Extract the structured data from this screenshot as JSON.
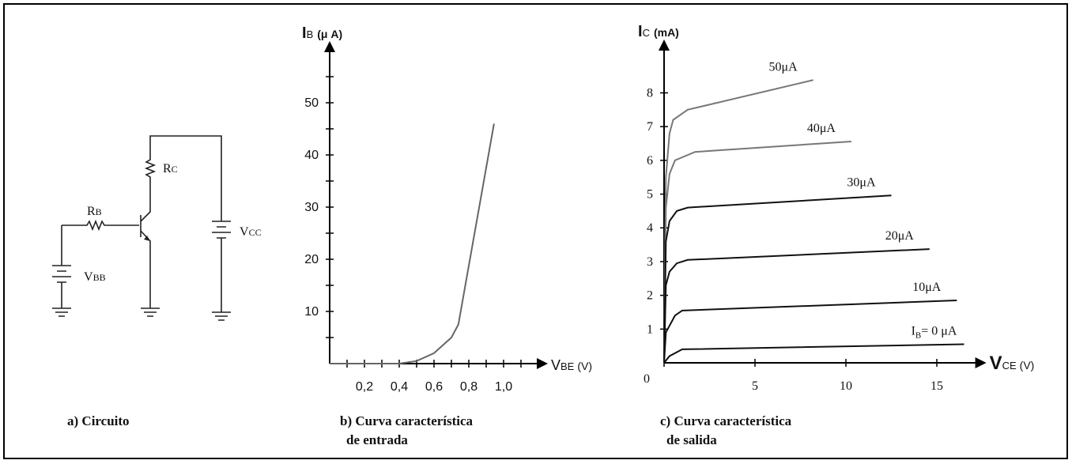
{
  "circuit": {
    "labels": [
      {
        "main": "R",
        "sub": "B"
      },
      {
        "main": "R",
        "sub": "C"
      },
      {
        "main": "V",
        "sub": "BB"
      },
      {
        "main": "V",
        "sub": "CC"
      }
    ],
    "caption": [
      "a) Circuito"
    ]
  },
  "chart_data": [
    {
      "type": "line",
      "caption": [
        "b) Curva característica",
        "de entrada"
      ],
      "y_label": {
        "main": "I",
        "sub": "B",
        "unit": "(μ A)"
      },
      "x_label": {
        "main": "V",
        "sub": "BE",
        "unit": "(V)"
      },
      "xlim": [
        0,
        1.2
      ],
      "ylim": [
        0,
        60
      ],
      "xticks": [
        {
          "value": 0.2,
          "label": "0,2"
        },
        {
          "value": 0.4,
          "label": "0,4"
        },
        {
          "value": 0.6,
          "label": "0,6"
        },
        {
          "value": 0.8,
          "label": "0,8"
        },
        {
          "value": 1.0,
          "label": "1,0"
        }
      ],
      "xminorticks": [
        0.1,
        0.3,
        0.5,
        0.7,
        0.9,
        1.1
      ],
      "yticks": [
        10,
        20,
        30,
        40,
        50
      ],
      "yminorticks": [
        5,
        15,
        25,
        35,
        45,
        55
      ],
      "series": [
        {
          "color": "#666666",
          "x": [
            0,
            0.4,
            0.5,
            0.6,
            0.7,
            0.74,
            0.945
          ],
          "values": [
            0,
            0,
            0.5,
            2,
            5,
            7.5,
            46
          ]
        }
      ]
    },
    {
      "type": "line",
      "caption": [
        "c) Curva característica",
        "de salida"
      ],
      "y_label": {
        "main": "I",
        "sub": "C",
        "unit": "(mA)"
      },
      "x_label": {
        "main": "V",
        "sub": "CE",
        "unit": "(V)"
      },
      "xlim": [
        0,
        17.2
      ],
      "ylim": [
        0,
        9.3
      ],
      "xticks": [
        0,
        5,
        10,
        15
      ],
      "yticks": [
        1,
        2,
        3,
        4,
        5,
        6,
        7,
        8
      ],
      "series": [
        {
          "name": "50μA",
          "color": "#777777",
          "x": [
            0,
            0.1,
            0.3,
            0.5,
            1.3,
            8.2
          ],
          "values": [
            0,
            5.5,
            6.8,
            7.2,
            7.5,
            8.38
          ]
        },
        {
          "name": "40μA",
          "color": "#777777",
          "x": [
            0,
            0.1,
            0.3,
            0.6,
            1.7,
            10.3
          ],
          "values": [
            0,
            4.6,
            5.6,
            6.0,
            6.25,
            6.56
          ]
        },
        {
          "name": "30μA",
          "color": "#111111",
          "x": [
            0,
            0.1,
            0.3,
            0.7,
            1.3,
            12.5
          ],
          "values": [
            0,
            3.6,
            4.2,
            4.5,
            4.6,
            4.96
          ]
        },
        {
          "name": "20μA",
          "color": "#111111",
          "x": [
            0,
            0.1,
            0.3,
            0.7,
            1.3,
            14.6
          ],
          "values": [
            0,
            2.3,
            2.7,
            2.95,
            3.05,
            3.37
          ]
        },
        {
          "name": "10μA",
          "color": "#111111",
          "x": [
            0,
            0.1,
            0.3,
            0.6,
            1.0,
            16.1
          ],
          "values": [
            0,
            0.9,
            1.1,
            1.4,
            1.55,
            1.85
          ]
        },
        {
          "name_main": "I",
          "name_sub": "B",
          "name": "= 0 μA",
          "color": "#111111",
          "x": [
            0,
            0.3,
            1.0,
            16.5
          ],
          "values": [
            0,
            0.2,
            0.4,
            0.55
          ]
        }
      ]
    }
  ]
}
